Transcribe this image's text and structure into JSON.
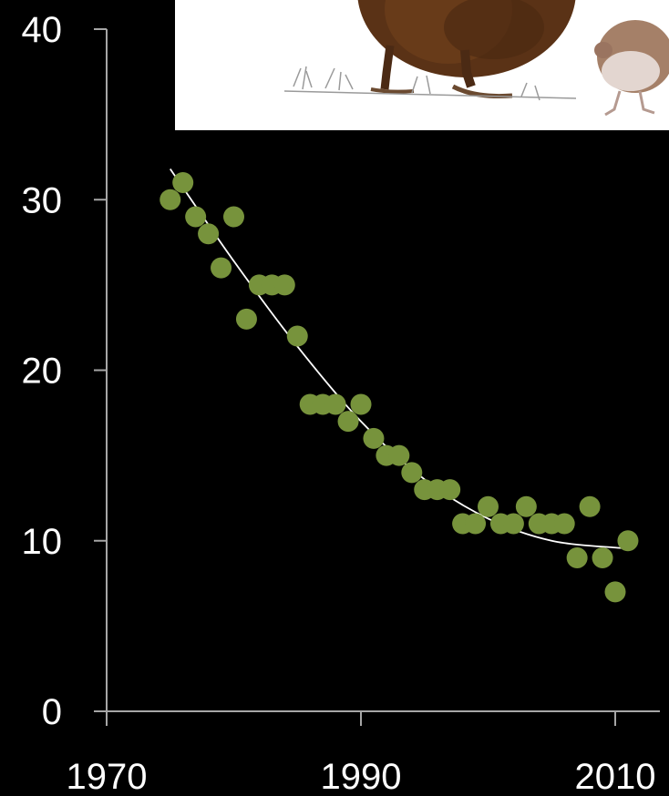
{
  "chart_data": {
    "type": "scatter",
    "title": "",
    "xlabel": "",
    "ylabel": "",
    "xlim": [
      1970,
      2011
    ],
    "ylim": [
      0,
      40
    ],
    "xticks": [
      1970,
      1990,
      2010
    ],
    "yticks": [
      0,
      10,
      20,
      30,
      40
    ],
    "grid": false,
    "legend": "none",
    "colors": {
      "background": "#000000",
      "axis": "#a6a6a6",
      "points": "#77933c",
      "trend": "#ffffff"
    },
    "series": [
      {
        "kind": "points",
        "x": [
          1975,
          1976,
          1977,
          1978,
          1979,
          1980,
          1981,
          1982,
          1983,
          1984,
          1985,
          1986,
          1987,
          1988,
          1989,
          1990,
          1991,
          1992,
          1993,
          1994,
          1995,
          1996,
          1997,
          1998,
          1999,
          2000,
          2001,
          2002,
          2003,
          2004,
          2005,
          2006,
          2007,
          2008,
          2009,
          2010,
          2011
        ],
        "y": [
          30,
          31,
          29,
          28,
          26,
          29,
          23,
          25,
          25,
          25,
          22,
          18,
          18,
          18,
          17,
          18,
          16,
          15,
          15,
          14,
          13,
          13,
          13,
          11,
          11,
          12,
          11,
          11,
          12,
          11,
          11,
          11,
          9,
          12,
          9,
          7,
          10
        ]
      },
      {
        "kind": "trend-line",
        "x": [
          1975,
          1980,
          1985,
          1990,
          1995,
          2000,
          2005,
          2010,
          2011
        ],
        "y": [
          31.8,
          26.4,
          21.4,
          17.0,
          13.6,
          11.3,
          10.0,
          9.6,
          9.6
        ]
      }
    ]
  },
  "inset_image": {
    "subject": "bird-illustration"
  }
}
